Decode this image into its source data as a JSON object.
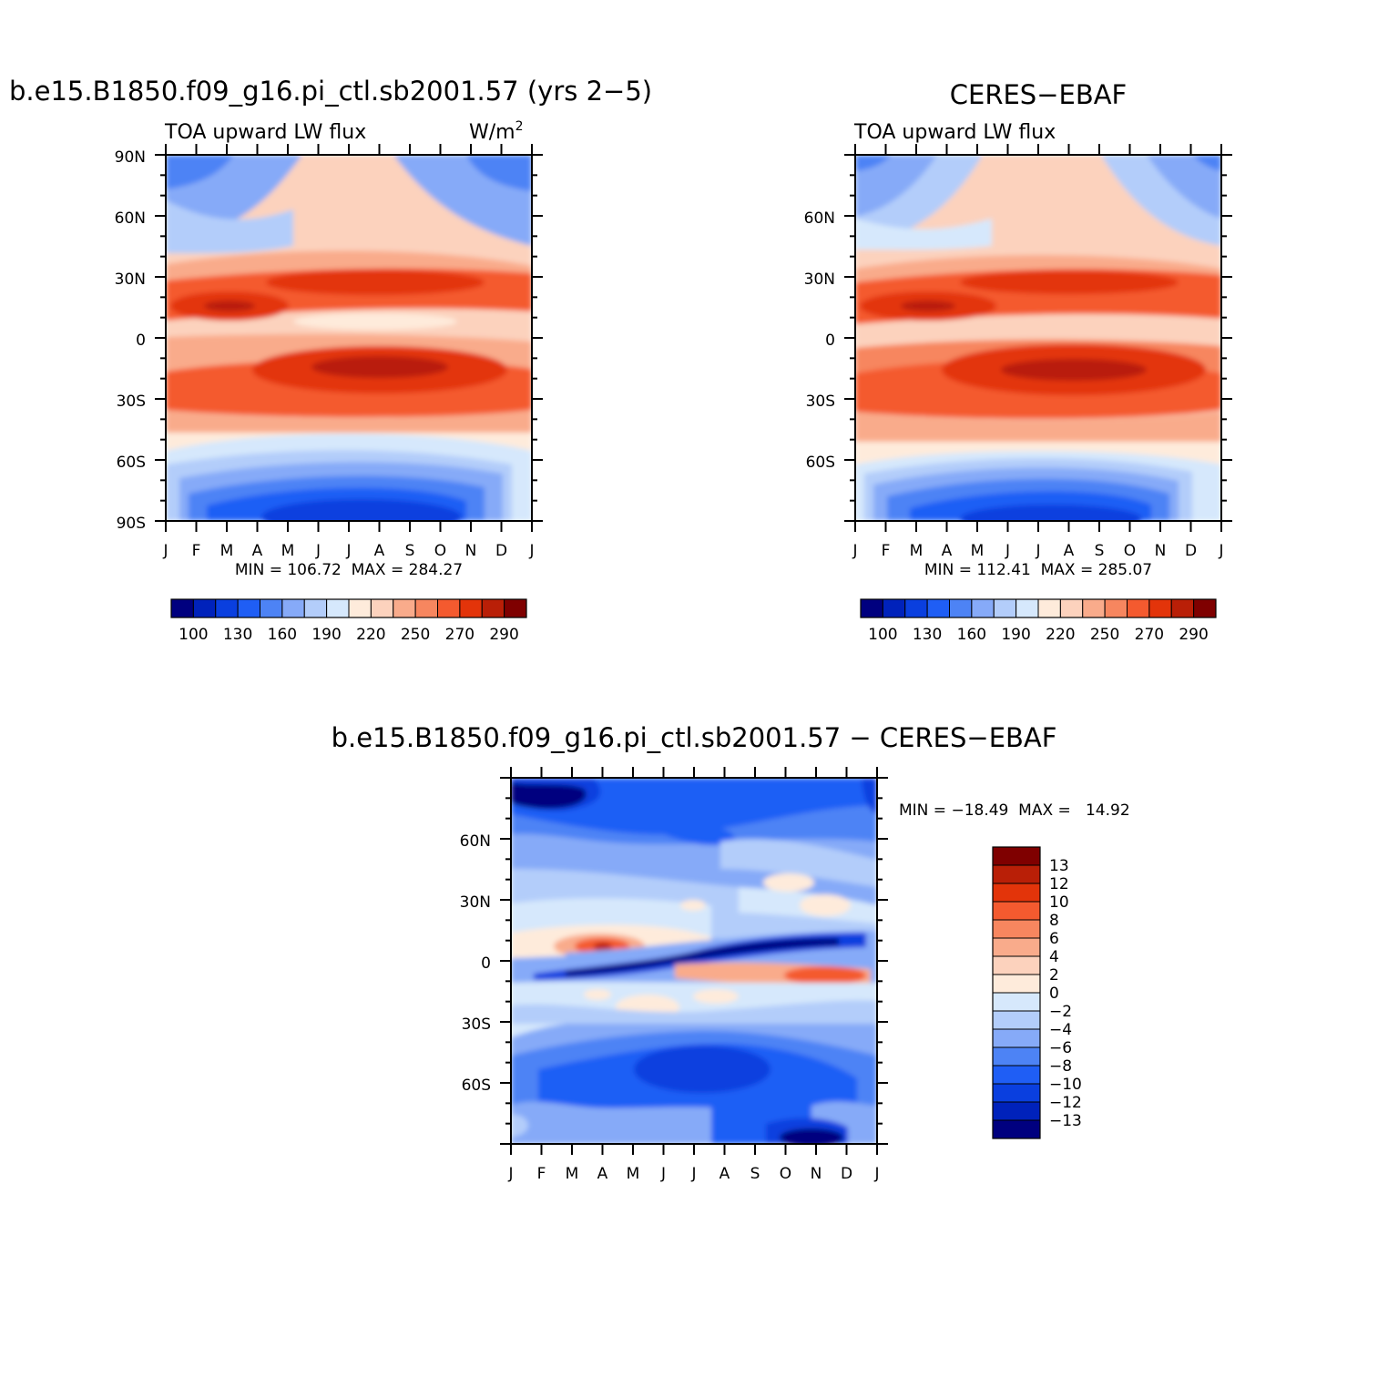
{
  "palette": [
    "#00007f",
    "#0022bb",
    "#0a3fdf",
    "#1f5ef5",
    "#4d83f5",
    "#86aaf8",
    "#b3cdfa",
    "#d6e8fc",
    "#feebdb",
    "#fcd2bd",
    "#f9ab8b",
    "#f7865f",
    "#f45a2f",
    "#e3340a",
    "#b91f07",
    "#7f0000"
  ],
  "top_colorbar_labels": [
    "100",
    "130",
    "160",
    "190",
    "220",
    "250",
    "270",
    "290"
  ],
  "diff_colorbar_labels": [
    "13",
    "12",
    "10",
    "8",
    "6",
    "4",
    "2",
    "0",
    "−2",
    "−4",
    "−6",
    "−8",
    "−10",
    "−12",
    "−13"
  ],
  "chart_data": [
    {
      "type": "heatmap",
      "title": "b.e15.B1850.f09_g16.pi_ctl.sb2001.57 (yrs 2−5)",
      "subtitle": "TOA upward LW flux",
      "units": "W/m",
      "units_sup": "2",
      "x": [
        "J",
        "F",
        "M",
        "A",
        "M",
        "J",
        "J",
        "A",
        "S",
        "O",
        "N",
        "D",
        "J"
      ],
      "y_ticks": [
        "90N",
        "60N",
        "30N",
        "0",
        "30S",
        "60S",
        "90S"
      ],
      "ylim": [
        -90,
        90
      ],
      "min_label": "MIN = 106.72  MAX = 284.27",
      "min": 106.72,
      "max": 284.27
    },
    {
      "type": "heatmap",
      "title": "CERES−EBAF",
      "subtitle": "TOA upward LW flux",
      "x": [
        "J",
        "F",
        "M",
        "A",
        "M",
        "J",
        "J",
        "A",
        "S",
        "O",
        "N",
        "D",
        "J"
      ],
      "y_ticks": [
        "60N",
        "30N",
        "0",
        "30S",
        "60S"
      ],
      "ylim": [
        -90,
        90
      ],
      "min_label": "MIN = 112.41  MAX = 285.07",
      "min": 112.41,
      "max": 285.07
    },
    {
      "type": "heatmap",
      "title": "b.e15.B1850.f09_g16.pi_ctl.sb2001.57 − CERES−EBAF",
      "x": [
        "J",
        "F",
        "M",
        "A",
        "M",
        "J",
        "J",
        "A",
        "S",
        "O",
        "N",
        "D",
        "J"
      ],
      "y_ticks": [
        "60N",
        "30N",
        "0",
        "30S",
        "60S"
      ],
      "ylim": [
        -90,
        90
      ],
      "min_label": "MIN = −18.49  MAX =   14.92",
      "min": -18.49,
      "max": 14.92
    }
  ]
}
